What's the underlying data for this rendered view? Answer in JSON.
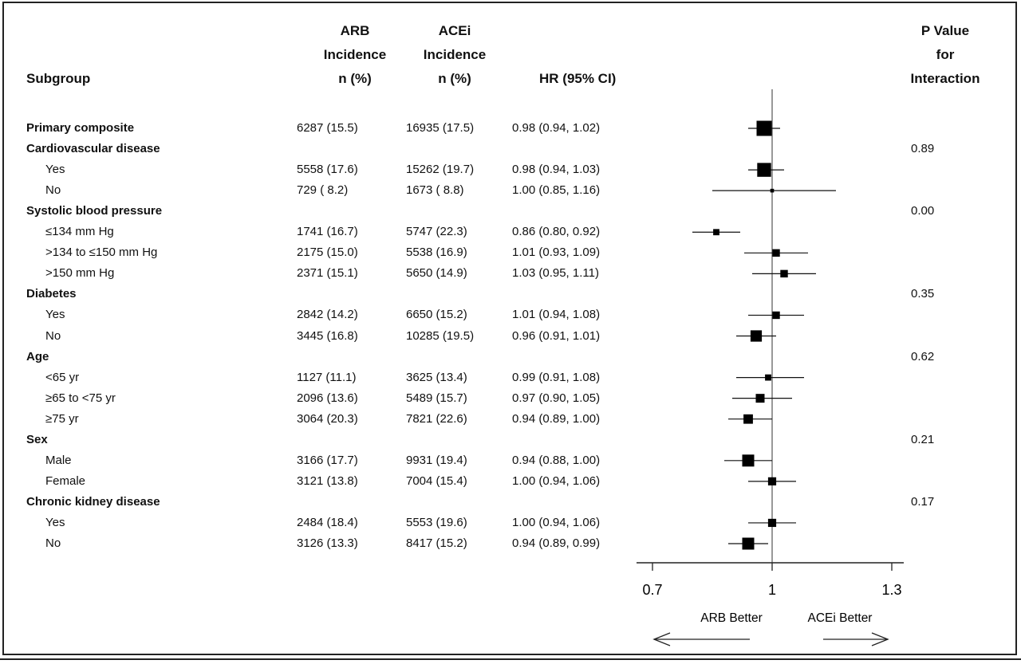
{
  "headers": {
    "subgroup": "Subgroup",
    "arb": [
      "ARB",
      "Incidence",
      "n (%)"
    ],
    "acei": [
      "ACEi",
      "Incidence",
      "n (%)"
    ],
    "hr": "HR (95% CI)",
    "p": [
      "P Value",
      "for",
      "Interaction"
    ]
  },
  "rows": [
    {
      "label": "Primary composite",
      "bold": true,
      "arb": "6287 (15.5)",
      "acei": "16935 (17.5)",
      "hr_text": "0.98 (0.94, 1.02)",
      "p": ""
    },
    {
      "label": "Cardiovascular disease",
      "bold": true,
      "arb": "",
      "acei": "",
      "hr_text": "",
      "p": "0.89"
    },
    {
      "label": "Yes",
      "bold": false,
      "arb": "5558 (17.6)",
      "acei": "15262 (19.7)",
      "hr_text": "0.98 (0.94, 1.03)",
      "p": ""
    },
    {
      "label": "No",
      "bold": false,
      "arb": "729 ( 8.2)",
      "acei": "1673 ( 8.8)",
      "hr_text": "1.00 (0.85, 1.16)",
      "p": ""
    },
    {
      "label": "Systolic blood pressure",
      "bold": true,
      "arb": "",
      "acei": "",
      "hr_text": "",
      "p": "0.00"
    },
    {
      "label": "≤134 mm Hg",
      "bold": false,
      "arb": "1741 (16.7)",
      "acei": "5747 (22.3)",
      "hr_text": "0.86 (0.80, 0.92)",
      "p": ""
    },
    {
      "label": ">134 to ≤150 mm Hg",
      "bold": false,
      "arb": "2175 (15.0)",
      "acei": "5538 (16.9)",
      "hr_text": "1.01 (0.93, 1.09)",
      "p": ""
    },
    {
      "label": ">150 mm Hg",
      "bold": false,
      "arb": "2371 (15.1)",
      "acei": "5650 (14.9)",
      "hr_text": "1.03 (0.95, 1.11)",
      "p": ""
    },
    {
      "label": "Diabetes",
      "bold": true,
      "arb": "",
      "acei": "",
      "hr_text": "",
      "p": "0.35"
    },
    {
      "label": "Yes",
      "bold": false,
      "arb": "2842 (14.2)",
      "acei": "6650 (15.2)",
      "hr_text": "1.01 (0.94, 1.08)",
      "p": ""
    },
    {
      "label": "No",
      "bold": false,
      "arb": "3445 (16.8)",
      "acei": "10285 (19.5)",
      "hr_text": "0.96 (0.91, 1.01)",
      "p": ""
    },
    {
      "label": "Age",
      "bold": true,
      "arb": "",
      "acei": "",
      "hr_text": "",
      "p": "0.62"
    },
    {
      "label": "<65 yr",
      "bold": false,
      "arb": "1127 (11.1)",
      "acei": "3625 (13.4)",
      "hr_text": "0.99 (0.91, 1.08)",
      "p": ""
    },
    {
      "label": "≥65 to <75 yr",
      "bold": false,
      "arb": "2096 (13.6)",
      "acei": "5489 (15.7)",
      "hr_text": "0.97 (0.90, 1.05)",
      "p": ""
    },
    {
      "label": "≥75 yr",
      "bold": false,
      "arb": "3064 (20.3)",
      "acei": "7821 (22.6)",
      "hr_text": "0.94 (0.89, 1.00)",
      "p": ""
    },
    {
      "label": "Sex",
      "bold": true,
      "arb": "",
      "acei": "",
      "hr_text": "",
      "p": "0.21"
    },
    {
      "label": "Male",
      "bold": false,
      "arb": "3166 (17.7)",
      "acei": "9931 (19.4)",
      "hr_text": "0.94 (0.88, 1.00)",
      "p": ""
    },
    {
      "label": "Female",
      "bold": false,
      "arb": "3121 (13.8)",
      "acei": "7004 (15.4)",
      "hr_text": "1.00 (0.94, 1.06)",
      "p": ""
    },
    {
      "label": "Chronic kidney disease",
      "bold": true,
      "arb": "",
      "acei": "",
      "hr_text": "",
      "p": "0.17"
    },
    {
      "label": "Yes",
      "bold": false,
      "arb": "2484 (18.4)",
      "acei": "5553 (19.6)",
      "hr_text": "1.00 (0.94, 1.06)",
      "p": ""
    },
    {
      "label": "No",
      "bold": false,
      "arb": "3126 (13.3)",
      "acei": "8417 (15.2)",
      "hr_text": "0.94 (0.89, 0.99)",
      "p": ""
    }
  ],
  "chart_data": {
    "type": "forest",
    "xlim": [
      0.7,
      1.3
    ],
    "xticks": [
      0.7,
      1,
      1.3
    ],
    "xtick_labels": [
      "0.7",
      "1",
      "1.3"
    ],
    "reference_line": 1,
    "direction_labels": {
      "left": "ARB Better",
      "right": "ACEi Better"
    },
    "points": [
      {
        "hr": 0.98,
        "lo": 0.94,
        "hi": 1.02,
        "weight": 1.0
      },
      null,
      {
        "hr": 0.98,
        "lo": 0.94,
        "hi": 1.03,
        "weight": 0.9
      },
      {
        "hr": 1.0,
        "lo": 0.85,
        "hi": 1.16,
        "weight": 0.1
      },
      null,
      {
        "hr": 0.86,
        "lo": 0.8,
        "hi": 0.92,
        "weight": 0.3
      },
      {
        "hr": 1.01,
        "lo": 0.93,
        "hi": 1.09,
        "weight": 0.4
      },
      {
        "hr": 1.03,
        "lo": 0.95,
        "hi": 1.11,
        "weight": 0.4
      },
      null,
      {
        "hr": 1.01,
        "lo": 0.94,
        "hi": 1.08,
        "weight": 0.4
      },
      {
        "hr": 0.96,
        "lo": 0.91,
        "hi": 1.01,
        "weight": 0.7
      },
      null,
      {
        "hr": 0.99,
        "lo": 0.91,
        "hi": 1.08,
        "weight": 0.3
      },
      {
        "hr": 0.97,
        "lo": 0.9,
        "hi": 1.05,
        "weight": 0.5
      },
      {
        "hr": 0.94,
        "lo": 0.89,
        "hi": 1.0,
        "weight": 0.55
      },
      null,
      {
        "hr": 0.94,
        "lo": 0.88,
        "hi": 1.0,
        "weight": 0.75
      },
      {
        "hr": 1.0,
        "lo": 0.94,
        "hi": 1.06,
        "weight": 0.45
      },
      null,
      {
        "hr": 1.0,
        "lo": 0.94,
        "hi": 1.06,
        "weight": 0.45
      },
      {
        "hr": 0.94,
        "lo": 0.89,
        "hi": 0.99,
        "weight": 0.75
      }
    ]
  }
}
